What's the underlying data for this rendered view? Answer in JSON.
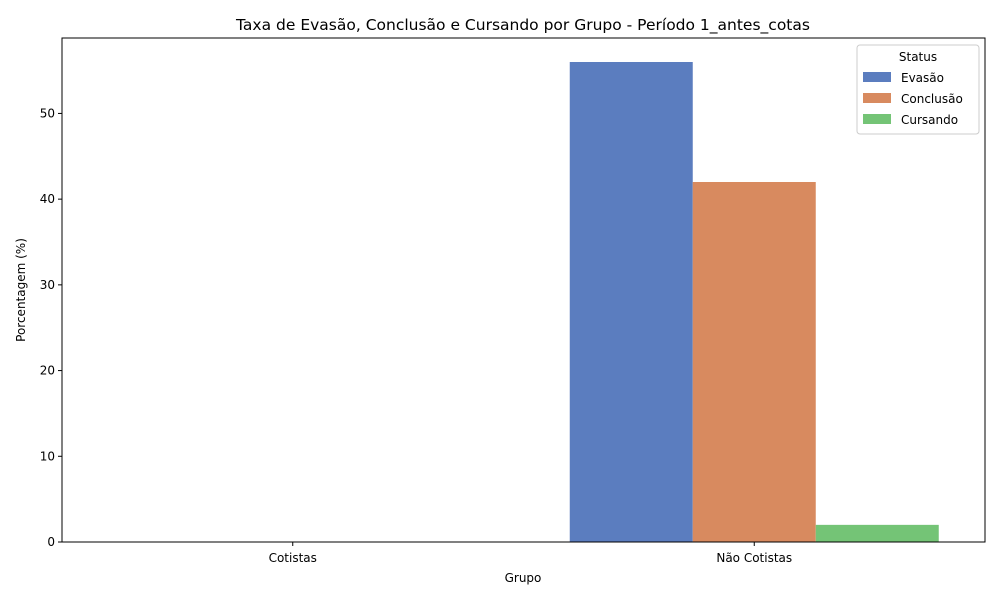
{
  "chart_data": {
    "type": "bar",
    "title": "Taxa de Evasão, Conclusão e Cursando por Grupo - Período 1_antes_cotas",
    "xlabel": "Grupo",
    "ylabel": "Porcentagem (%)",
    "categories": [
      "Cotistas",
      "Não Cotistas"
    ],
    "ylim": [
      0,
      58.8
    ],
    "yticks": [
      0,
      10,
      20,
      30,
      40,
      50
    ],
    "grid": false,
    "legend": {
      "title": "Status",
      "placement": "top-right"
    },
    "series": [
      {
        "name": "Evasão",
        "color": "#5b7dbf",
        "values": [
          0,
          56
        ]
      },
      {
        "name": "Conclusão",
        "color": "#d88a5f",
        "values": [
          0,
          42
        ]
      },
      {
        "name": "Cursando",
        "color": "#74c476",
        "values": [
          0,
          2
        ]
      }
    ]
  }
}
